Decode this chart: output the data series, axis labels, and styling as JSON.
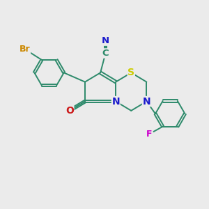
{
  "background_color": "#ebebeb",
  "bond_color": "#2d8a6b",
  "bond_width": 1.4,
  "atom_colors": {
    "C": "#2d8a6b",
    "N": "#1a1acc",
    "O": "#cc1a1a",
    "S": "#cccc00",
    "Br": "#cc8800",
    "F": "#cc00cc"
  },
  "font_size": 9.5,
  "figsize": [
    3.0,
    3.0
  ],
  "dpi": 100,
  "xlim": [
    0,
    10
  ],
  "ylim": [
    0,
    10
  ]
}
